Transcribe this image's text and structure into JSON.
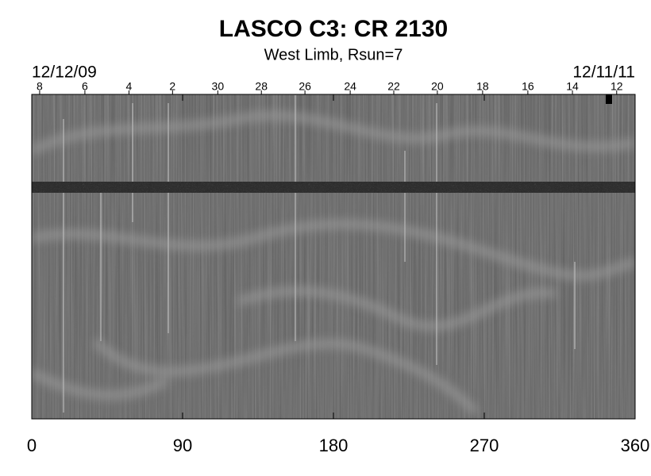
{
  "chart_data": {
    "type": "image",
    "title": "LASCO C3: CR 2130",
    "subtitle": "West Limb, Rsun=7",
    "start_date": "12/12/09",
    "end_date": "12/11/11",
    "xlim": [
      0,
      360
    ],
    "xticks": [
      0,
      90,
      180,
      270,
      360
    ],
    "top_ticks": [
      {
        "value": 4.7,
        "label": "8"
      },
      {
        "value": 31.7,
        "label": "6"
      },
      {
        "value": 58,
        "label": "4"
      },
      {
        "value": 84,
        "label": "2"
      },
      {
        "value": 111,
        "label": "30"
      },
      {
        "value": 137,
        "label": "28"
      },
      {
        "value": 163,
        "label": "26"
      },
      {
        "value": 190,
        "label": "24"
      },
      {
        "value": 216,
        "label": "22"
      },
      {
        "value": 242,
        "label": "20"
      },
      {
        "value": 269,
        "label": "18"
      },
      {
        "value": 296,
        "label": "16"
      },
      {
        "value": 322.6,
        "label": "14"
      },
      {
        "value": 349,
        "label": "12"
      }
    ]
  }
}
